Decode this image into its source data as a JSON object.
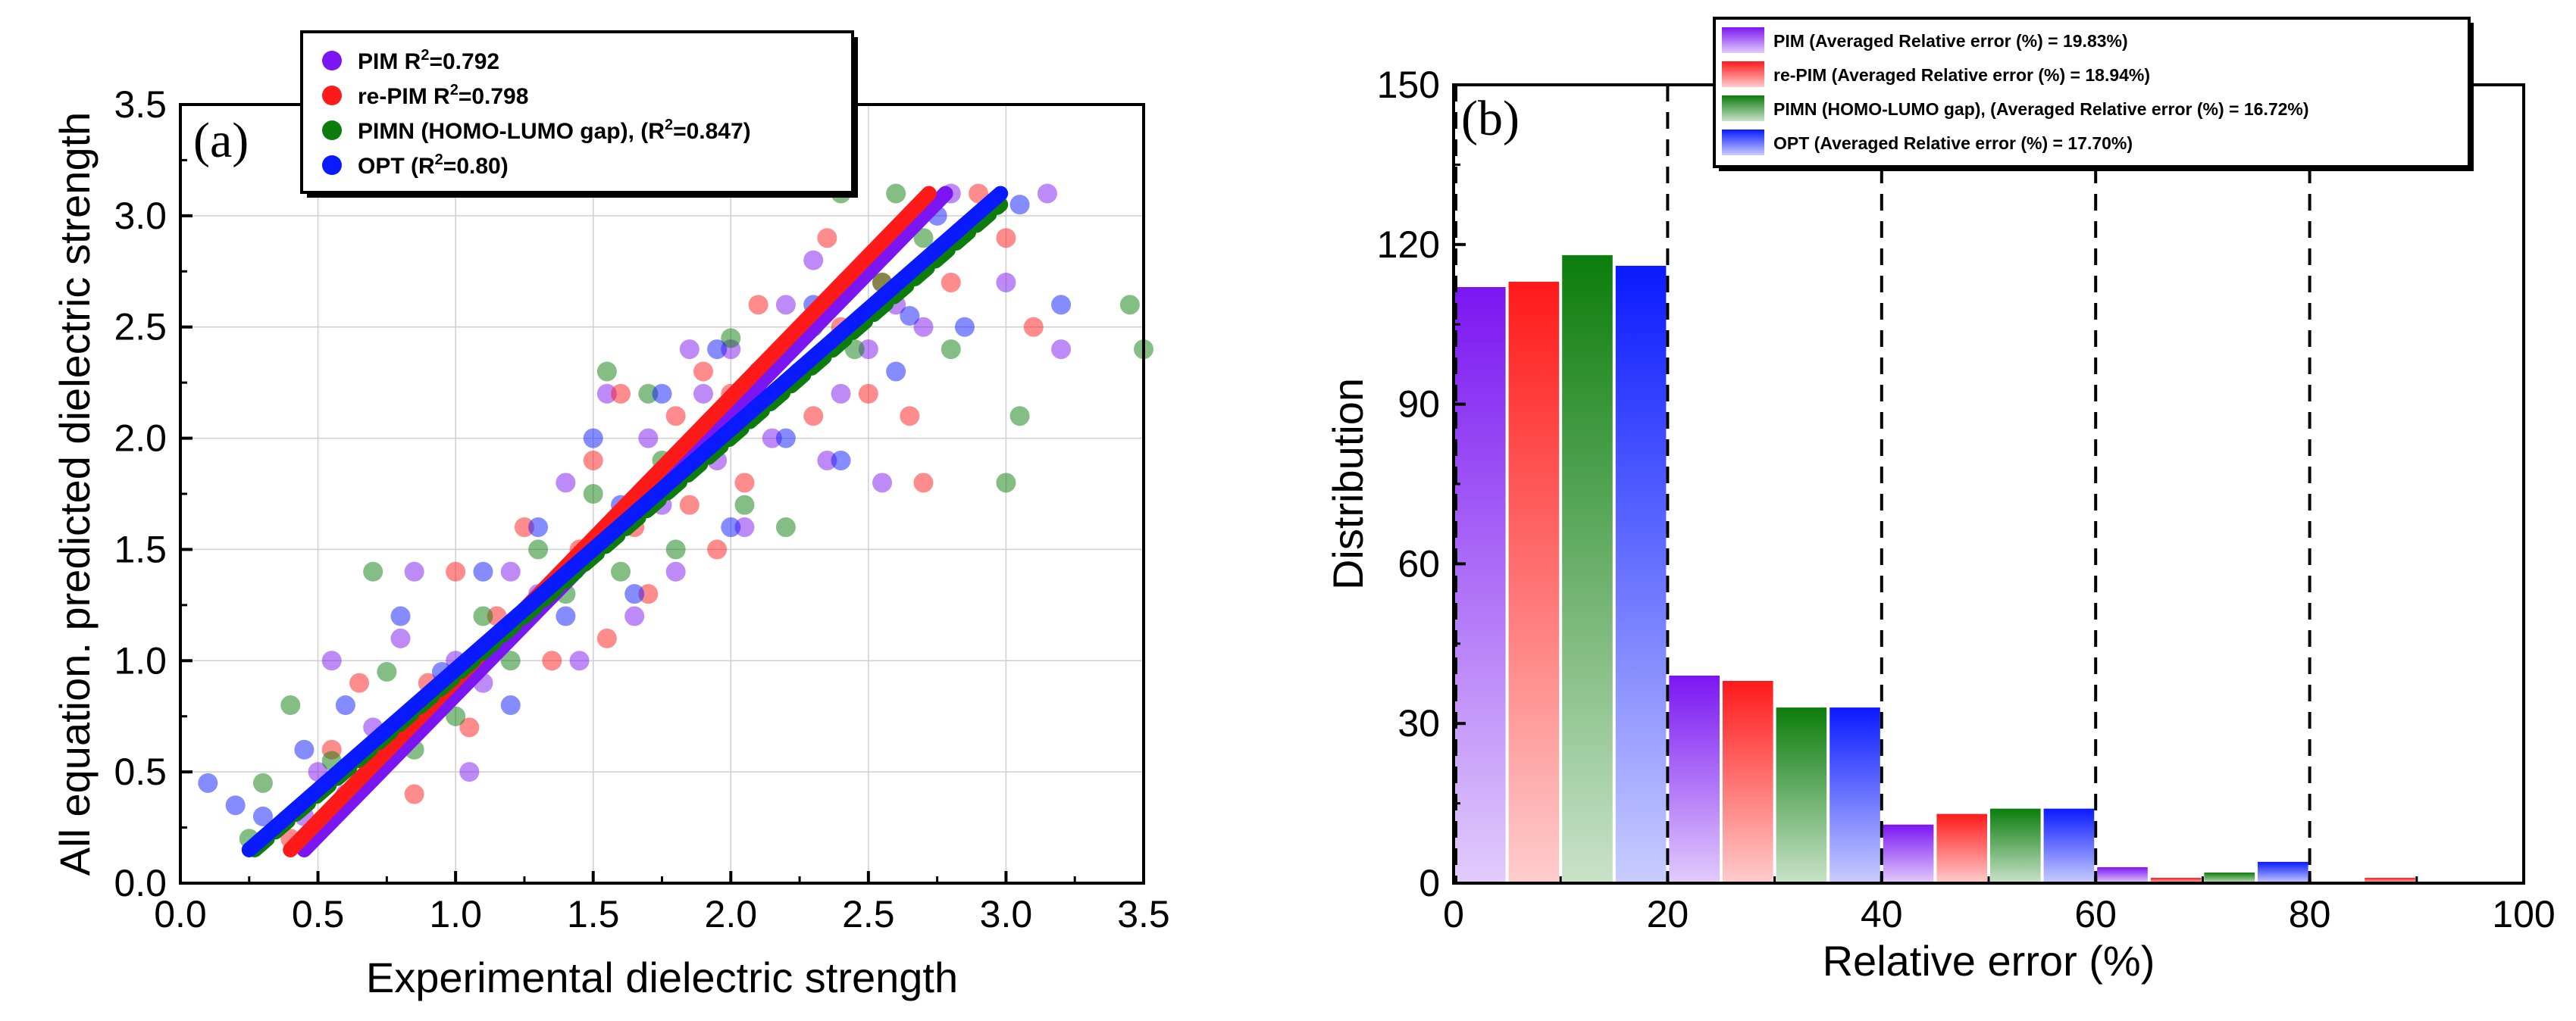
{
  "chart_data": [
    {
      "type": "scatter",
      "panel_label": "(a)",
      "title": "",
      "xlabel": "Experimental dielectric strength",
      "ylabel": "All equation. predicted dielectric strength",
      "xlim": [
        0.0,
        3.5
      ],
      "ylim": [
        0.0,
        3.5
      ],
      "xticks": [
        "0.0",
        "0.5",
        "1.0",
        "1.5",
        "2.0",
        "2.5",
        "3.0",
        "3.5"
      ],
      "yticks": [
        "0.0",
        "0.5",
        "1.0",
        "1.5",
        "2.0",
        "2.5",
        "3.0",
        "3.5"
      ],
      "grid": true,
      "legend_position": "top",
      "series": [
        {
          "name": "PIM",
          "r2_text": "R",
          "r2_sup": "2",
          "r2_value": "=0.792",
          "color": "#7b16f2",
          "fit_line": [
            [
              0.45,
              0.15
            ],
            [
              2.78,
              3.1
            ]
          ],
          "points": [
            [
              0.45,
              0.3
            ],
            [
              0.5,
              0.5
            ],
            [
              0.55,
              1.0
            ],
            [
              0.6,
              0.4
            ],
            [
              0.7,
              0.7
            ],
            [
              0.8,
              1.1
            ],
            [
              0.85,
              1.4
            ],
            [
              0.9,
              0.8
            ],
            [
              1.0,
              1.0
            ],
            [
              1.05,
              0.5
            ],
            [
              1.1,
              0.9
            ],
            [
              1.2,
              1.4
            ],
            [
              1.3,
              1.3
            ],
            [
              1.4,
              1.8
            ],
            [
              1.45,
              1.0
            ],
            [
              1.5,
              1.5
            ],
            [
              1.55,
              2.2
            ],
            [
              1.6,
              1.6
            ],
            [
              1.65,
              1.2
            ],
            [
              1.7,
              2.0
            ],
            [
              1.75,
              1.7
            ],
            [
              1.8,
              1.4
            ],
            [
              1.85,
              2.4
            ],
            [
              1.9,
              2.2
            ],
            [
              1.95,
              1.9
            ],
            [
              2.0,
              2.4
            ],
            [
              2.05,
              1.6
            ],
            [
              2.1,
              2.2
            ],
            [
              2.15,
              2.0
            ],
            [
              2.2,
              2.6
            ],
            [
              2.25,
              2.3
            ],
            [
              2.3,
              2.8
            ],
            [
              2.35,
              1.9
            ],
            [
              2.4,
              2.2
            ],
            [
              2.5,
              2.4
            ],
            [
              2.55,
              1.8
            ],
            [
              2.6,
              2.6
            ],
            [
              2.7,
              2.5
            ],
            [
              2.8,
              3.1
            ],
            [
              3.0,
              2.7
            ],
            [
              3.15,
              3.1
            ],
            [
              3.2,
              2.4
            ]
          ]
        },
        {
          "name": "re-PIM",
          "r2_text": "R",
          "r2_sup": "2",
          "r2_value": "=0.798",
          "color": "#ff1a1a",
          "fit_line": [
            [
              0.4,
              0.15
            ],
            [
              2.72,
              3.1
            ]
          ],
          "points": [
            [
              0.4,
              0.2
            ],
            [
              0.55,
              0.6
            ],
            [
              0.65,
              0.9
            ],
            [
              0.7,
              0.5
            ],
            [
              0.85,
              0.4
            ],
            [
              0.9,
              0.9
            ],
            [
              1.0,
              1.4
            ],
            [
              1.05,
              0.7
            ],
            [
              1.15,
              1.2
            ],
            [
              1.25,
              1.6
            ],
            [
              1.35,
              1.0
            ],
            [
              1.45,
              1.5
            ],
            [
              1.5,
              1.9
            ],
            [
              1.55,
              1.1
            ],
            [
              1.6,
              2.2
            ],
            [
              1.65,
              1.6
            ],
            [
              1.7,
              1.3
            ],
            [
              1.8,
              2.1
            ],
            [
              1.85,
              1.7
            ],
            [
              1.9,
              2.3
            ],
            [
              1.95,
              1.5
            ],
            [
              2.0,
              2.2
            ],
            [
              2.05,
              1.8
            ],
            [
              2.1,
              2.6
            ],
            [
              2.2,
              2.4
            ],
            [
              2.3,
              2.1
            ],
            [
              2.35,
              2.9
            ],
            [
              2.4,
              2.5
            ],
            [
              2.5,
              2.2
            ],
            [
              2.55,
              2.7
            ],
            [
              2.65,
              2.1
            ],
            [
              2.7,
              1.8
            ],
            [
              2.8,
              2.7
            ],
            [
              2.9,
              3.1
            ],
            [
              3.0,
              2.9
            ],
            [
              3.1,
              2.5
            ]
          ]
        },
        {
          "name": "PIMN (HOMO-LUMO gap), ",
          "r2_text": "(R",
          "r2_sup": "2",
          "r2_value": "=0.847)",
          "color": "#0c7d0c",
          "fit_line": [
            [
              0.27,
              0.15
            ],
            [
              2.98,
              3.05
            ]
          ],
          "points": [
            [
              0.25,
              0.2
            ],
            [
              0.3,
              0.45
            ],
            [
              0.4,
              0.8
            ],
            [
              0.55,
              0.55
            ],
            [
              0.7,
              1.4
            ],
            [
              0.75,
              0.95
            ],
            [
              0.85,
              0.6
            ],
            [
              1.0,
              0.75
            ],
            [
              1.1,
              1.2
            ],
            [
              1.2,
              1.0
            ],
            [
              1.3,
              1.5
            ],
            [
              1.4,
              1.3
            ],
            [
              1.5,
              1.75
            ],
            [
              1.55,
              2.3
            ],
            [
              1.6,
              1.4
            ],
            [
              1.7,
              2.2
            ],
            [
              1.75,
              1.9
            ],
            [
              1.8,
              1.5
            ],
            [
              1.9,
              2.0
            ],
            [
              2.0,
              2.45
            ],
            [
              2.05,
              1.7
            ],
            [
              2.1,
              2.2
            ],
            [
              2.2,
              1.6
            ],
            [
              2.3,
              2.5
            ],
            [
              2.4,
              3.1
            ],
            [
              2.45,
              2.4
            ],
            [
              2.55,
              2.7
            ],
            [
              2.6,
              3.1
            ],
            [
              2.7,
              2.9
            ],
            [
              2.8,
              2.4
            ],
            [
              3.0,
              1.8
            ],
            [
              3.05,
              2.1
            ],
            [
              3.45,
              2.6
            ],
            [
              3.5,
              2.4
            ]
          ]
        },
        {
          "name": "OPT",
          "r2_text": "(R",
          "r2_sup": "2",
          "r2_value": "=0.80)",
          "color": "#0a1aff",
          "fit_line": [
            [
              0.25,
              0.15
            ],
            [
              2.98,
              3.1
            ]
          ],
          "points": [
            [
              0.1,
              0.45
            ],
            [
              0.2,
              0.35
            ],
            [
              0.3,
              0.3
            ],
            [
              0.45,
              0.6
            ],
            [
              0.6,
              0.8
            ],
            [
              0.7,
              0.5
            ],
            [
              0.8,
              1.2
            ],
            [
              0.95,
              0.95
            ],
            [
              1.1,
              1.4
            ],
            [
              1.2,
              0.8
            ],
            [
              1.3,
              1.6
            ],
            [
              1.4,
              1.2
            ],
            [
              1.5,
              2.0
            ],
            [
              1.6,
              1.7
            ],
            [
              1.65,
              1.3
            ],
            [
              1.75,
              2.2
            ],
            [
              1.85,
              1.9
            ],
            [
              1.95,
              2.4
            ],
            [
              2.0,
              1.6
            ],
            [
              2.1,
              2.3
            ],
            [
              2.2,
              2.0
            ],
            [
              2.3,
              2.6
            ],
            [
              2.4,
              1.9
            ],
            [
              2.5,
              2.8
            ],
            [
              2.6,
              2.3
            ],
            [
              2.65,
              2.55
            ],
            [
              2.75,
              3.0
            ],
            [
              2.85,
              2.5
            ],
            [
              3.05,
              3.05
            ],
            [
              3.2,
              2.6
            ]
          ]
        }
      ]
    },
    {
      "type": "bar",
      "panel_label": "(b)",
      "title": "",
      "xlabel": "Relative error (%)",
      "ylabel": "Distribution",
      "xlim": [
        0,
        100
      ],
      "ylim": [
        0,
        150
      ],
      "xticks": [
        "0",
        "20",
        "40",
        "60",
        "80",
        "100"
      ],
      "yticks": [
        "0",
        "30",
        "60",
        "90",
        "120",
        "150"
      ],
      "grid": false,
      "legend_position": "top-right",
      "bins": [
        "0-20",
        "20-40",
        "40-60",
        "60-80",
        "80-100"
      ],
      "vlines": [
        0,
        20,
        40,
        60,
        80
      ],
      "series": [
        {
          "name": "PIM",
          "legend": "PIM (Averaged Relative error (%) = 19.83%)",
          "color": "#7b16f2",
          "values": [
            112,
            39,
            11,
            3,
            0
          ]
        },
        {
          "name": "re-PIM",
          "legend": "re-PIM (Averaged Relative error (%) = 18.94%)",
          "color": "#ff1a1a",
          "values": [
            113,
            38,
            13,
            1,
            1
          ]
        },
        {
          "name": "PIMN (HOMO-LUMO gap)",
          "legend": "PIMN (HOMO-LUMO gap), (Averaged Relative error (%) = 16.72%)",
          "color": "#0c7d0c",
          "values": [
            118,
            33,
            14,
            2,
            0
          ]
        },
        {
          "name": "OPT",
          "legend": "OPT (Averaged Relative error (%) = 17.70%)",
          "color": "#0a1aff",
          "values": [
            116,
            33,
            14,
            4,
            0
          ]
        }
      ]
    }
  ]
}
